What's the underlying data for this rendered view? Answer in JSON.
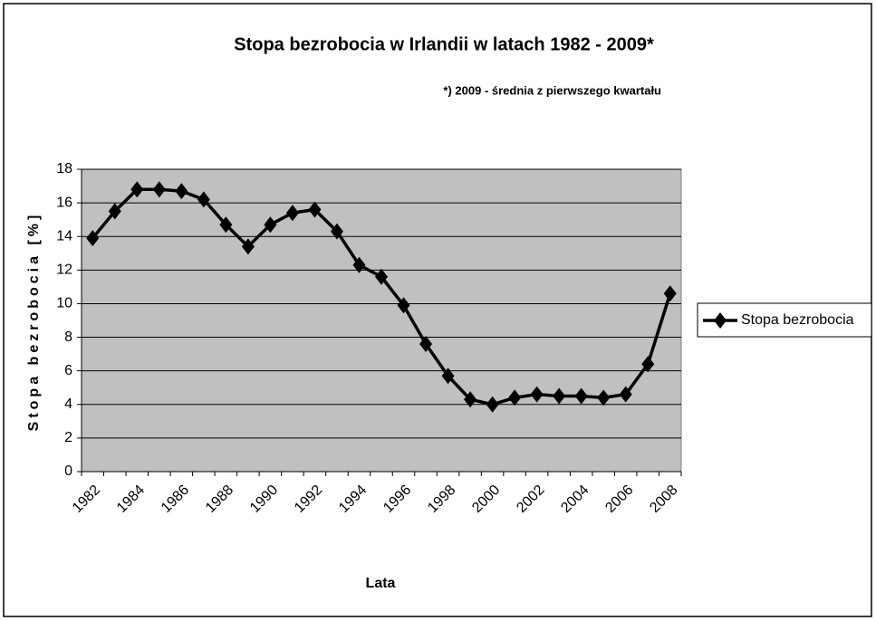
{
  "chart_data": {
    "type": "line",
    "title": "Stopa bezrobocia w Irlandii w latach 1982 - 2009*",
    "subtitle": "*) 2009 - średnia z pierwszego kwartału",
    "x_label": "Lata",
    "y_label": "Stopa bezrobocia [%]",
    "categories": [
      "1982",
      null,
      "1984",
      null,
      "1986",
      null,
      "1988",
      null,
      "1990",
      null,
      "1992",
      null,
      "1994",
      null,
      "1996",
      null,
      "1998",
      null,
      "2000",
      null,
      "2002",
      null,
      "2004",
      null,
      "2006",
      null,
      "2008"
    ],
    "series": [
      {
        "name": "Stopa bezrobocia",
        "color": "#000000",
        "values": [
          13.9,
          15.5,
          16.8,
          16.8,
          16.7,
          16.2,
          14.7,
          13.4,
          14.7,
          15.4,
          15.6,
          14.3,
          12.3,
          11.6,
          9.9,
          7.6,
          5.7,
          4.3,
          4.0,
          4.4,
          4.6,
          4.5,
          4.5,
          4.4,
          4.6,
          6.4,
          10.6
        ]
      }
    ],
    "ylim": [
      0,
      18
    ],
    "yticks": [
      0,
      2,
      4,
      6,
      8,
      10,
      12,
      14,
      16,
      18
    ],
    "grid": true,
    "legend": "right"
  }
}
